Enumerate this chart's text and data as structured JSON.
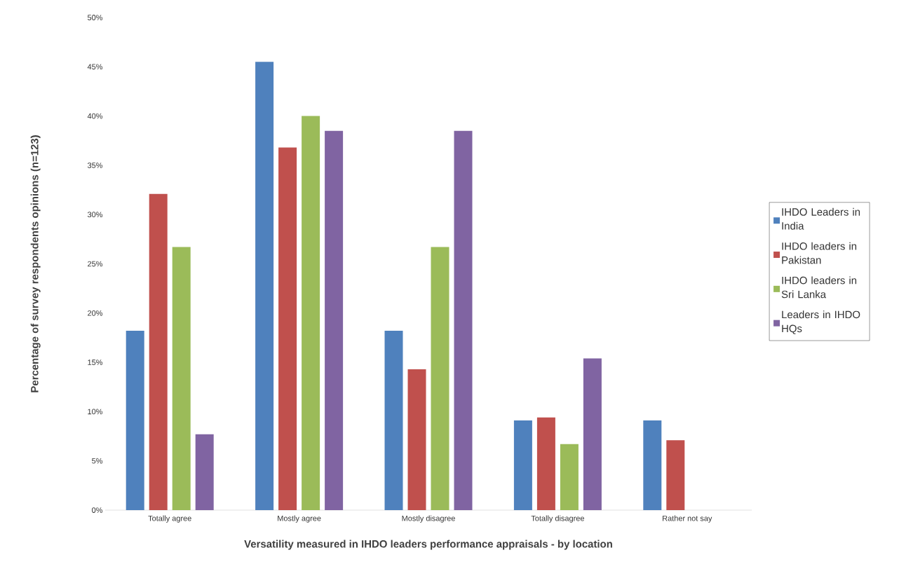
{
  "chart_data": {
    "type": "bar",
    "xlabel": "Versatility measured in IHDO leaders performance appraisals - by location",
    "ylabel": "Percentage of survey respondents opinions (n=123)",
    "categories": [
      "Totally agree",
      "Mostly agree",
      "Mostly disagree",
      "Totally disagree",
      "Rather not say"
    ],
    "series": [
      {
        "name": "IHDO Leaders in India",
        "color": "#4f81bd",
        "values": [
          18.2,
          45.5,
          18.2,
          9.1,
          9.1
        ]
      },
      {
        "name": "IHDO leaders in Pakistan",
        "color": "#c0504d",
        "values": [
          32.1,
          36.8,
          14.3,
          9.4,
          7.1
        ]
      },
      {
        "name": "IHDO leaders in Sri Lanka",
        "color": "#9bbb59",
        "values": [
          26.7,
          40.0,
          26.7,
          6.7,
          0
        ]
      },
      {
        "name": "Leaders in IHDO HQs",
        "color": "#8064a2",
        "values": [
          7.7,
          38.5,
          38.5,
          15.4,
          0
        ]
      }
    ],
    "ylim": [
      0,
      50
    ],
    "yticks": [
      {
        "value": 0,
        "label": "0%"
      },
      {
        "value": 5,
        "label": "5%"
      },
      {
        "value": 10,
        "label": "10%"
      },
      {
        "value": 15,
        "label": "15%"
      },
      {
        "value": 20,
        "label": "20%"
      },
      {
        "value": 25,
        "label": "25%"
      },
      {
        "value": 30,
        "label": "30%"
      },
      {
        "value": 35,
        "label": "35%"
      },
      {
        "value": 40,
        "label": "40%"
      },
      {
        "value": 45,
        "label": "45%"
      },
      {
        "value": 50,
        "label": "50%"
      }
    ],
    "legend": "right"
  }
}
